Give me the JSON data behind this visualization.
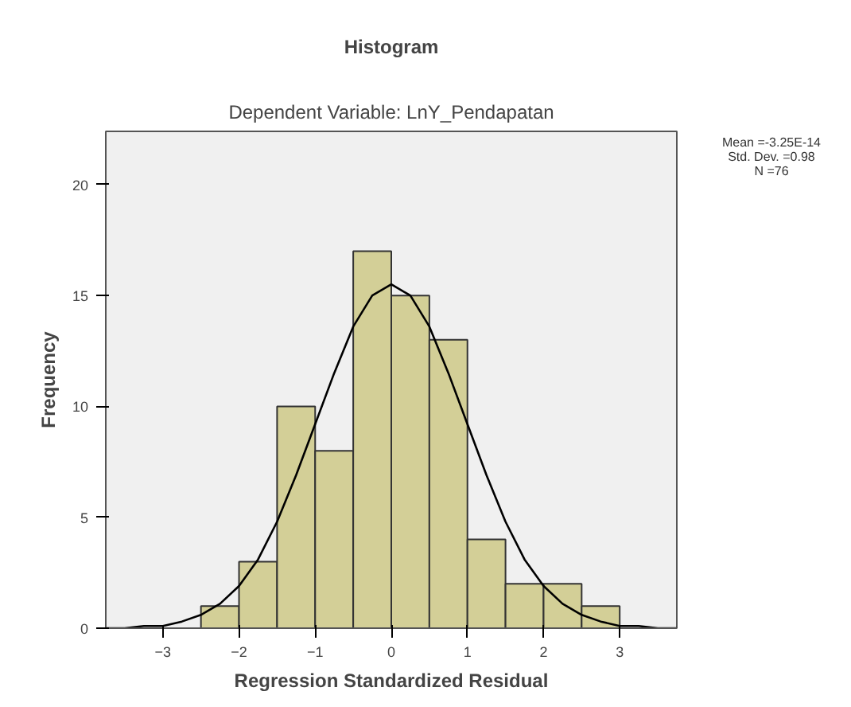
{
  "chart_data": {
    "type": "histogram",
    "title": "Histogram",
    "subtitle": "Dependent Variable: LnY_Pendapatan",
    "xlabel": "Regression Standardized Residual",
    "ylabel": "Frequency",
    "bins": [
      -2.5,
      -2,
      -1.5,
      -1,
      -0.5,
      0,
      0.5,
      1,
      1.5,
      2,
      2.5,
      3
    ],
    "values": [
      1,
      3,
      10,
      8,
      17,
      15,
      13,
      4,
      2,
      2,
      1
    ],
    "color": "#d3cf97",
    "series": [
      {
        "type": "line",
        "color": "#000000",
        "x": [
          -3.75,
          -3.5,
          -3.25,
          -3,
          -2.75,
          -2.5,
          -2.25,
          -2,
          -1.75,
          -1.5,
          -1.25,
          -1,
          -0.75,
          -0.5,
          -0.25,
          0,
          0.25,
          0.5,
          0.75,
          1,
          1.25,
          1.5,
          1.75,
          2,
          2.25,
          2.5,
          2.75,
          3,
          3.25,
          3.5,
          3.75
        ],
        "values": [
          0,
          0,
          0.1,
          0.1,
          0.3,
          0.6,
          1.1,
          1.9,
          3.1,
          4.8,
          6.9,
          9.2,
          11.5,
          13.6,
          15,
          15.5,
          15,
          13.6,
          11.5,
          9.2,
          6.9,
          4.8,
          3.1,
          1.9,
          1.1,
          0.6,
          0.3,
          0.1,
          0.1,
          0,
          0
        ]
      }
    ],
    "xlim": [
      -3.75,
      3.75
    ],
    "ylim": [
      0,
      22.4
    ],
    "xticks": [
      -3,
      -2,
      -1,
      0,
      1,
      2,
      3
    ],
    "yticks": [
      0,
      5,
      10,
      15,
      20
    ],
    "grid": false,
    "annotations": [
      "Mean =-3.25E-14",
      "Std. Dev. =0.98",
      "N =76"
    ]
  }
}
